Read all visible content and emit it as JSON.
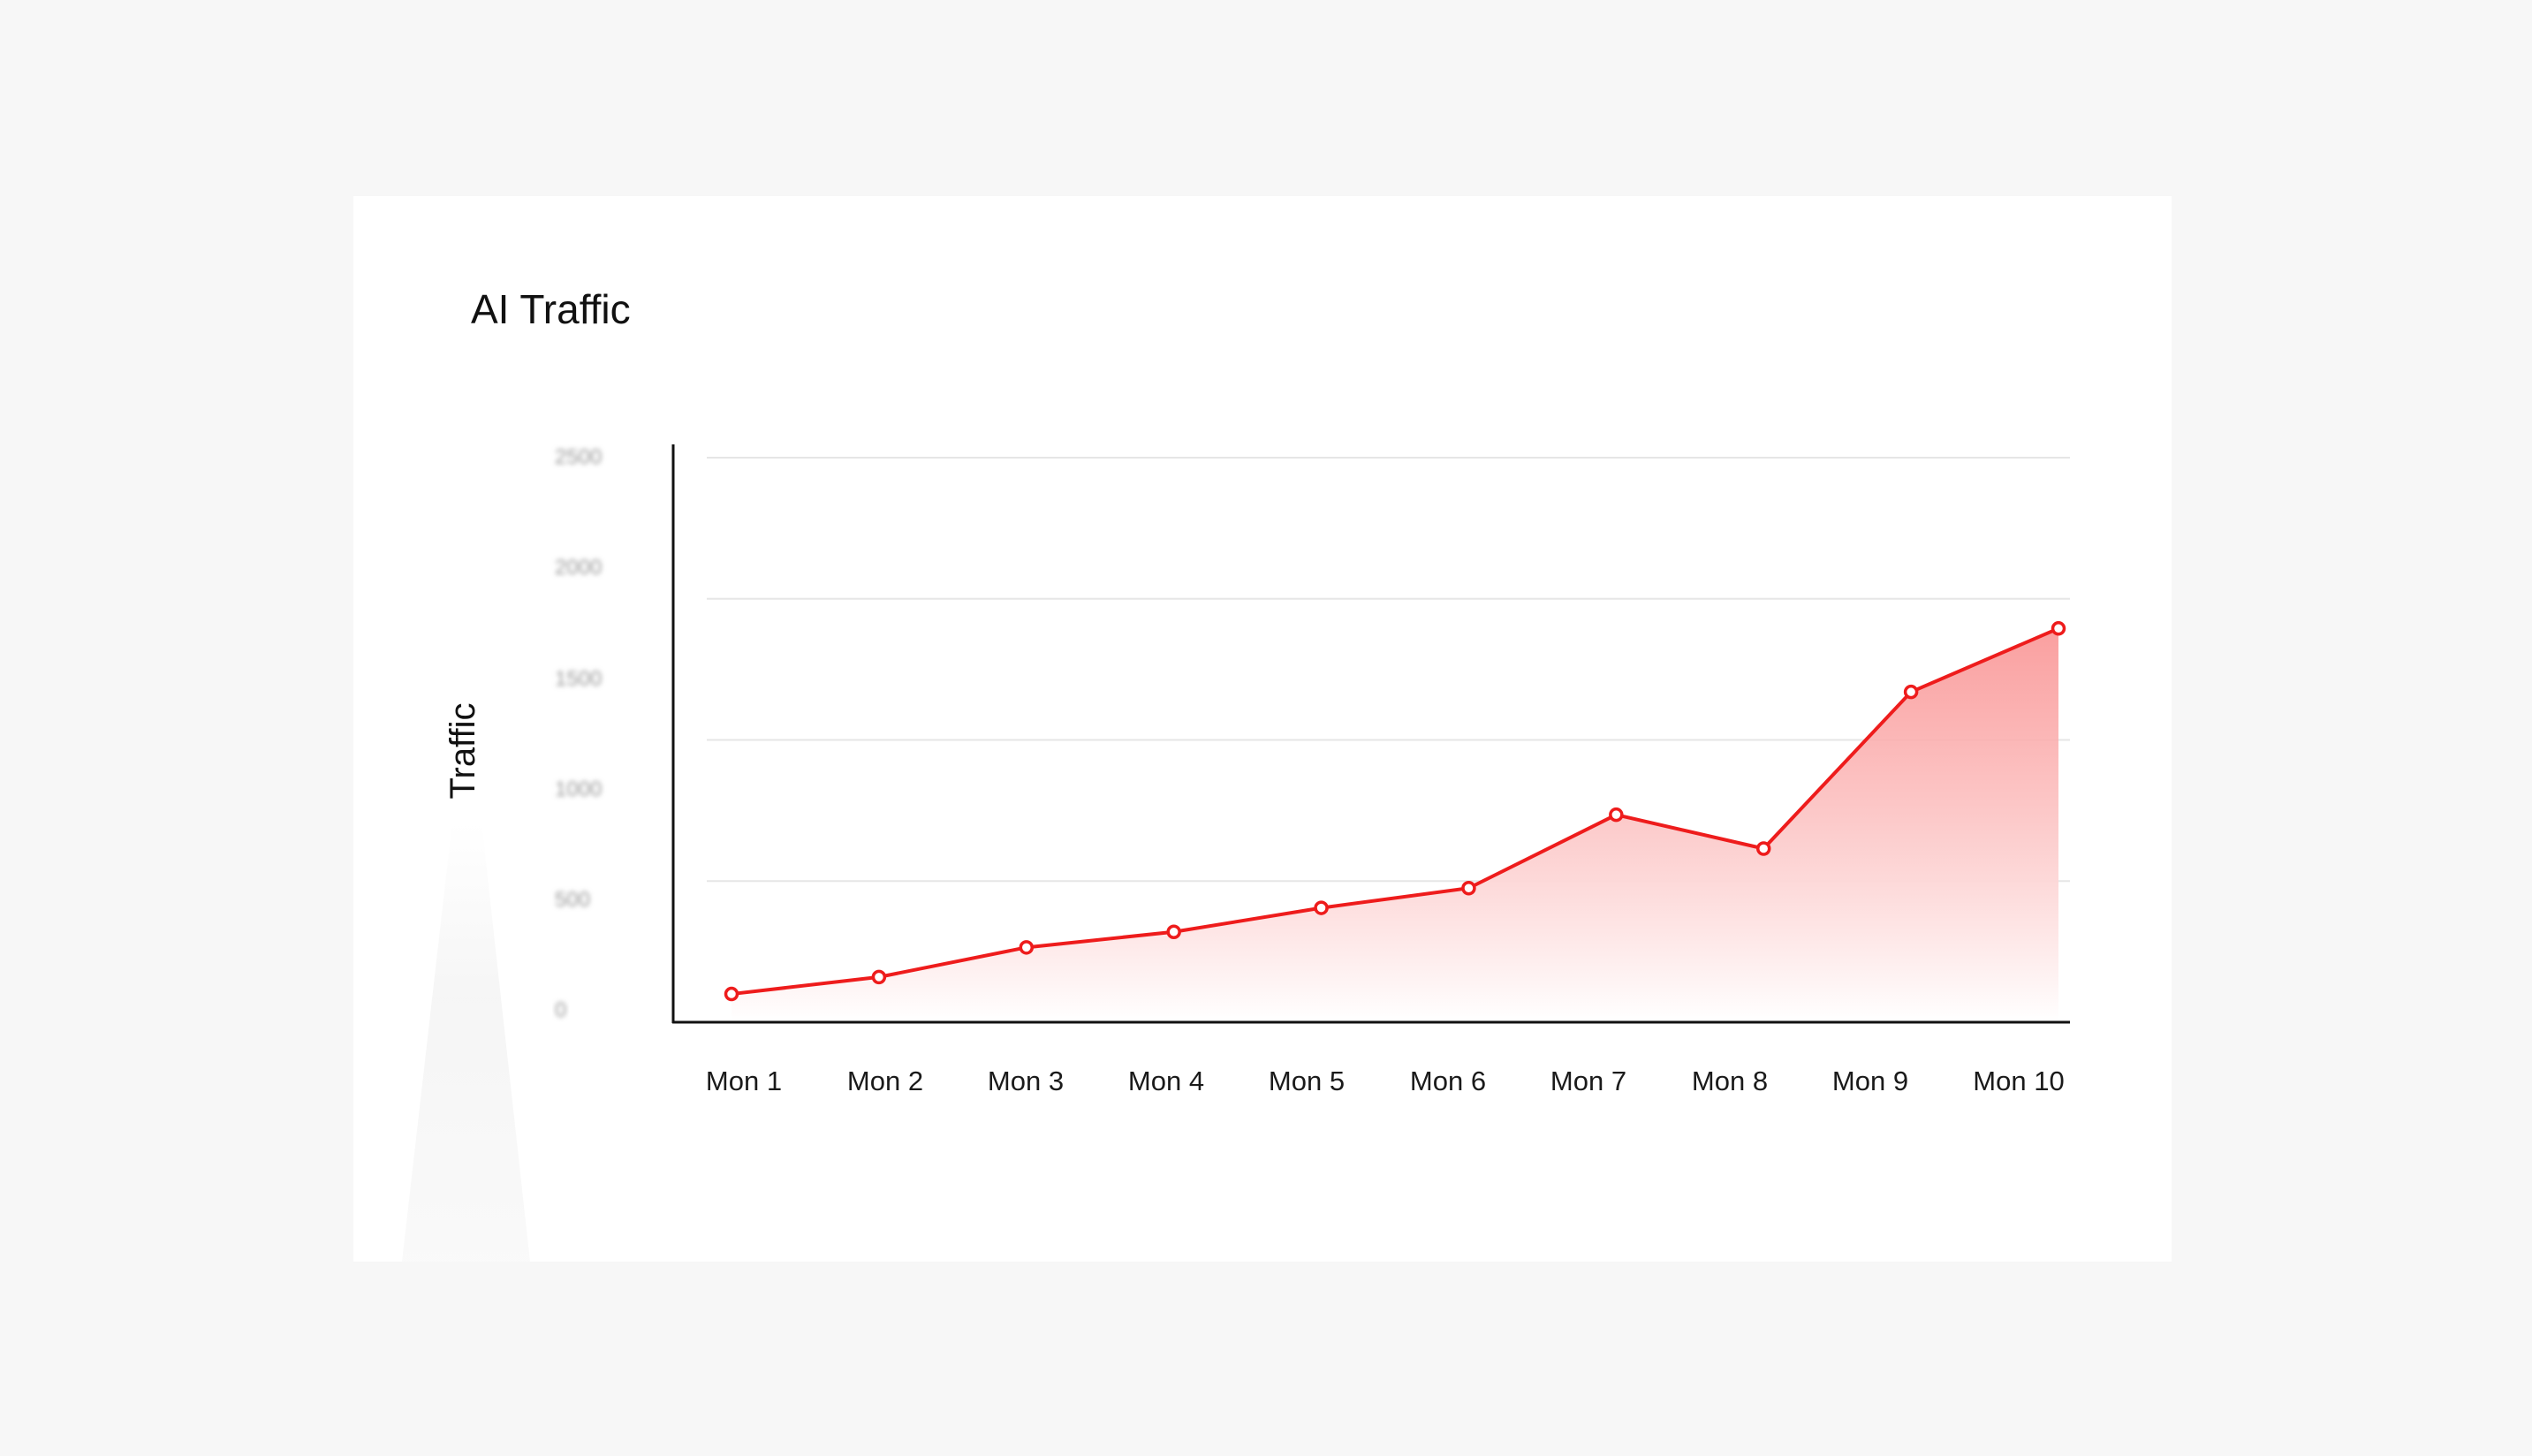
{
  "colors": {
    "line": "#ee1c1c",
    "fill_top": "#f98f8f",
    "fill_bottom": "#ffffff",
    "grid": "#e6e6e6",
    "axis": "#111111",
    "card": "#ffffff",
    "background": "#f7f7f7"
  },
  "chart_data": {
    "type": "area",
    "title": "AI Traffic",
    "xlabel": "",
    "ylabel": "Traffic",
    "categories": [
      "Mon 1",
      "Mon 2",
      "Mon 3",
      "Mon 4",
      "Mon 5",
      "Mon 6",
      "Mon 7",
      "Mon 8",
      "Mon 9",
      "Mon 10"
    ],
    "series": [
      {
        "values": [
          100,
          160,
          265,
          320,
          405,
          475,
          735,
          615,
          1170,
          1395
        ]
      }
    ],
    "yticks": [
      0,
      500,
      1000,
      1500,
      2000,
      2500
    ],
    "ytick_labels": [
      "0",
      "500",
      "1000",
      "1500",
      "2000",
      "2500"
    ],
    "ylim": [
      0,
      2000
    ],
    "grid": true,
    "legend": "none",
    "markers": "hollow-circle"
  }
}
